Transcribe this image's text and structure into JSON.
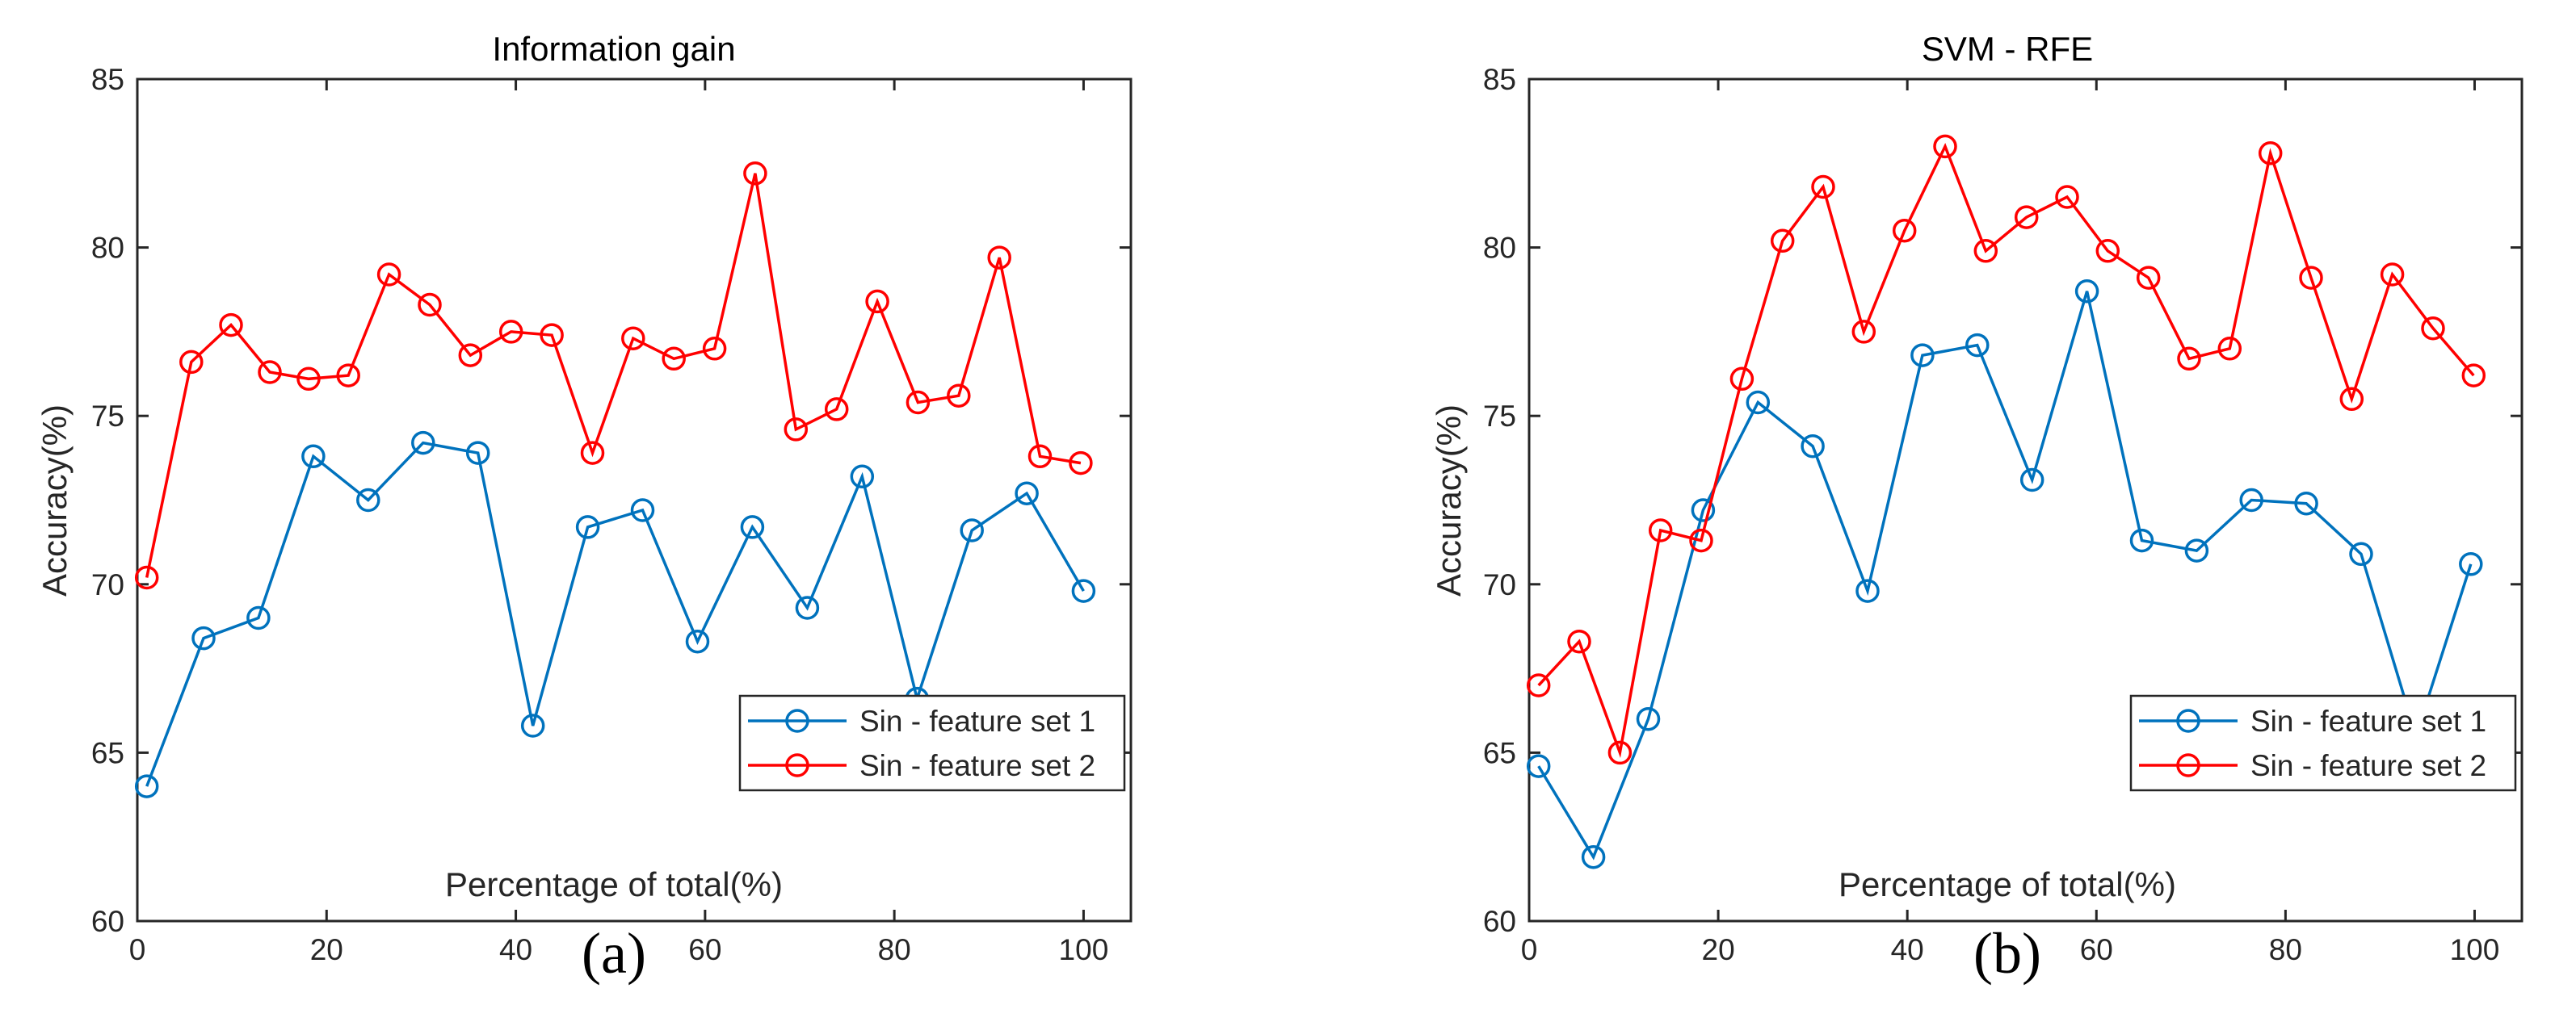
{
  "chart_data": [
    {
      "type": "line",
      "title": "Information gain",
      "panel_label": "(a)",
      "xlabel": "Percentage of total(%)",
      "ylabel": "Accuracy(%)",
      "xlim": [
        0,
        105
      ],
      "ylim": [
        60,
        85
      ],
      "xticks": [
        0,
        20,
        40,
        60,
        80,
        100
      ],
      "yticks": [
        60,
        65,
        70,
        75,
        80,
        85
      ],
      "grid": false,
      "legend_position": "bottom-right",
      "series": [
        {
          "name": "Sin - feature set 1",
          "color": "#0072BD",
          "marker": "circle",
          "x": [
            1,
            7,
            12.8,
            18.6,
            24.4,
            30.2,
            36,
            41.8,
            47.6,
            53.4,
            59.2,
            65,
            70.8,
            76.6,
            82.4,
            88.2,
            94,
            100
          ],
          "y": [
            64.0,
            68.4,
            69.0,
            73.8,
            72.5,
            74.2,
            73.9,
            65.8,
            71.7,
            72.2,
            68.3,
            71.7,
            69.3,
            73.2,
            66.6,
            71.6,
            72.7,
            69.8
          ]
        },
        {
          "name": "Sin - feature set 2",
          "color": "#FF0000",
          "marker": "circle",
          "x": [
            1,
            5.7,
            9.9,
            14,
            18.1,
            22.3,
            26.6,
            30.9,
            35.2,
            39.5,
            43.8,
            48.1,
            52.4,
            56.7,
            61,
            65.3,
            69.6,
            73.9,
            78.2,
            82.5,
            86.8,
            91.1,
            95.4,
            99.7
          ],
          "y": [
            70.2,
            76.6,
            77.7,
            76.3,
            76.1,
            76.2,
            79.2,
            78.3,
            76.8,
            77.5,
            77.4,
            73.9,
            77.3,
            76.7,
            77.0,
            82.2,
            74.6,
            75.2,
            78.4,
            75.4,
            75.6,
            79.7,
            73.8,
            73.6
          ]
        }
      ]
    },
    {
      "type": "line",
      "title": "SVM - RFE",
      "panel_label": "(b)",
      "xlabel": "Percentage of total(%)",
      "ylabel": "Accuracy(%)",
      "xlim": [
        0,
        105
      ],
      "ylim": [
        60,
        85
      ],
      "xticks": [
        0,
        20,
        40,
        60,
        80,
        100
      ],
      "yticks": [
        60,
        65,
        70,
        75,
        80,
        85
      ],
      "grid": false,
      "legend_position": "bottom-right",
      "series": [
        {
          "name": "Sin - feature set 1",
          "color": "#0072BD",
          "marker": "circle",
          "x": [
            1,
            6.8,
            12.6,
            18.4,
            24.2,
            30,
            35.8,
            41.6,
            47.4,
            53.2,
            59,
            64.8,
            70.6,
            76.4,
            82.2,
            88,
            93.8,
            99.6
          ],
          "y": [
            64.6,
            61.9,
            66.0,
            72.2,
            75.4,
            74.1,
            69.8,
            76.8,
            77.1,
            73.1,
            78.7,
            71.3,
            71.0,
            72.5,
            72.4,
            70.9,
            65.5,
            70.6
          ]
        },
        {
          "name": "Sin - feature set 2",
          "color": "#FF0000",
          "marker": "circle",
          "x": [
            1,
            5.3,
            9.6,
            13.9,
            18.2,
            22.5,
            26.8,
            31.1,
            35.4,
            39.7,
            44,
            48.3,
            52.6,
            56.9,
            61.2,
            65.5,
            69.8,
            74.1,
            78.4,
            82.7,
            87,
            91.3,
            95.6,
            99.9
          ],
          "y": [
            67.0,
            68.3,
            65.0,
            71.6,
            71.3,
            76.1,
            80.2,
            81.8,
            77.5,
            80.5,
            83.0,
            79.9,
            80.9,
            81.5,
            79.9,
            79.1,
            76.7,
            77.0,
            82.8,
            79.1,
            75.5,
            79.2,
            77.6,
            76.2
          ]
        }
      ]
    }
  ]
}
